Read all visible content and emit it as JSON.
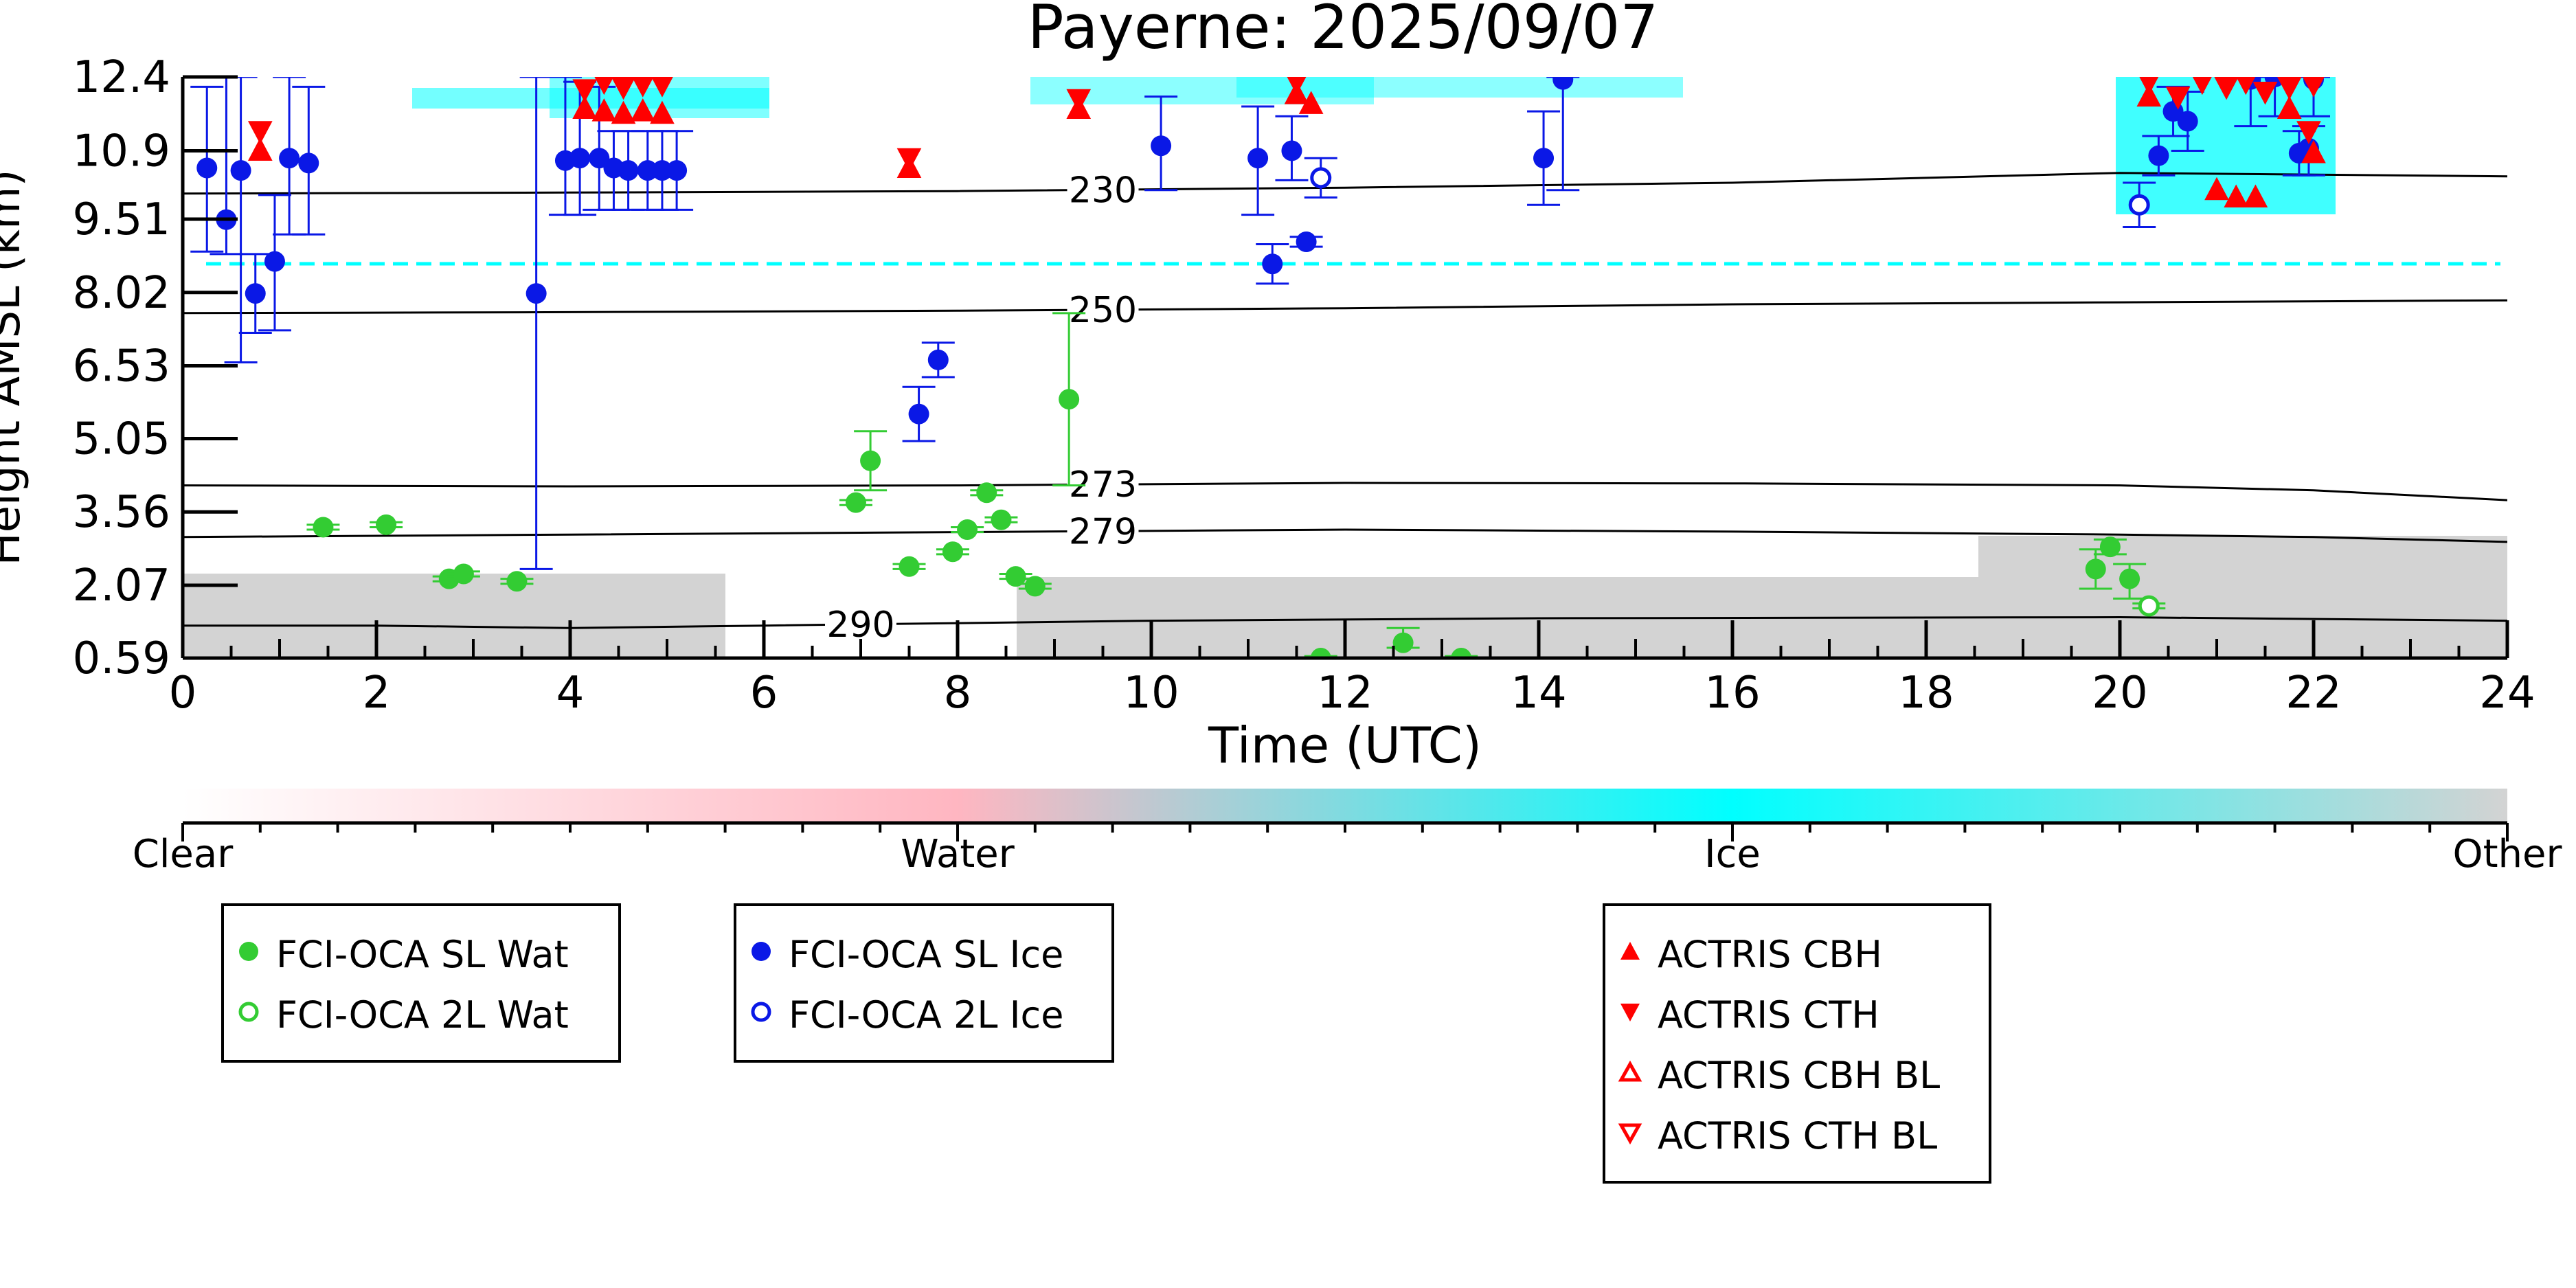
{
  "chart_data": {
    "type": "scatter",
    "title": "Payerne: 2025/09/07",
    "xlabel": "Time (UTC)",
    "ylabel": "Height AMSL (km)",
    "xlim": [
      0,
      24
    ],
    "ylim": [
      0.59,
      12.4
    ],
    "x_ticks": [
      "0",
      "2",
      "4",
      "6",
      "8",
      "10",
      "12",
      "14",
      "16",
      "18",
      "20",
      "22",
      "24"
    ],
    "y_ticks": [
      "12.4",
      "10.9",
      "9.51",
      "8.02",
      "6.53",
      "5.05",
      "3.56",
      "2.07",
      "0.59"
    ],
    "y_tick_values": [
      12.4,
      10.9,
      9.51,
      8.02,
      6.53,
      5.05,
      3.56,
      2.07,
      0.59
    ],
    "colorbar": {
      "labels": [
        "Clear",
        "Water",
        "Ice",
        "Other"
      ],
      "colors": [
        "#ffffff",
        "#ffb6c1",
        "#00ffff",
        "#d3d3d3"
      ]
    },
    "isotherms": [
      {
        "label": "230",
        "label_x": 9.5,
        "points": [
          [
            0,
            10.03
          ],
          [
            4,
            10.05
          ],
          [
            8,
            10.08
          ],
          [
            12,
            10.15
          ],
          [
            16,
            10.25
          ],
          [
            20,
            10.45
          ],
          [
            24,
            10.38
          ]
        ]
      },
      {
        "label": "250",
        "label_x": 9.5,
        "points": [
          [
            0,
            7.6
          ],
          [
            4,
            7.62
          ],
          [
            8,
            7.65
          ],
          [
            12,
            7.7
          ],
          [
            16,
            7.78
          ],
          [
            20,
            7.82
          ],
          [
            24,
            7.86
          ]
        ]
      },
      {
        "label": "273",
        "label_x": 9.5,
        "points": [
          [
            0,
            4.1
          ],
          [
            4,
            4.08
          ],
          [
            8,
            4.1
          ],
          [
            12,
            4.15
          ],
          [
            16,
            4.14
          ],
          [
            20,
            4.1
          ],
          [
            22,
            4.0
          ],
          [
            24,
            3.8
          ]
        ]
      },
      {
        "label": "279",
        "label_x": 9.5,
        "points": [
          [
            0,
            3.05
          ],
          [
            4,
            3.1
          ],
          [
            8,
            3.15
          ],
          [
            12,
            3.2
          ],
          [
            16,
            3.16
          ],
          [
            20,
            3.1
          ],
          [
            22,
            3.05
          ],
          [
            24,
            2.95
          ]
        ]
      },
      {
        "label": "290",
        "label_x": 7.0,
        "points": [
          [
            0,
            1.25
          ],
          [
            2,
            1.25
          ],
          [
            4,
            1.2
          ],
          [
            6,
            1.25
          ],
          [
            8,
            1.3
          ],
          [
            10,
            1.35
          ],
          [
            14,
            1.4
          ],
          [
            20,
            1.42
          ],
          [
            24,
            1.35
          ]
        ]
      }
    ],
    "series": [
      {
        "name": "FCI-OCA SL Wat",
        "color": "#33cc33",
        "marker": "circle",
        "filled": true,
        "points": [
          {
            "x": 1.45,
            "y": 3.25,
            "lo": 3.2,
            "hi": 3.3
          },
          {
            "x": 2.1,
            "y": 3.3,
            "lo": 3.25,
            "hi": 3.35
          },
          {
            "x": 2.75,
            "y": 2.2,
            "lo": 2.15,
            "hi": 2.25
          },
          {
            "x": 2.9,
            "y": 2.3,
            "lo": 2.25,
            "hi": 2.35
          },
          {
            "x": 3.45,
            "y": 2.15,
            "lo": 2.1,
            "hi": 2.2
          },
          {
            "x": 6.95,
            "y": 3.75,
            "lo": 3.7,
            "hi": 3.8
          },
          {
            "x": 7.1,
            "y": 4.6,
            "lo": 4.0,
            "hi": 5.2
          },
          {
            "x": 7.5,
            "y": 2.45,
            "lo": 2.4,
            "hi": 2.5
          },
          {
            "x": 7.95,
            "y": 2.75,
            "lo": 2.7,
            "hi": 2.8
          },
          {
            "x": 8.1,
            "y": 3.2,
            "lo": 3.15,
            "hi": 3.25
          },
          {
            "x": 8.3,
            "y": 3.95,
            "lo": 3.9,
            "hi": 4.0
          },
          {
            "x": 8.45,
            "y": 3.4,
            "lo": 3.35,
            "hi": 3.45
          },
          {
            "x": 8.6,
            "y": 2.25,
            "lo": 2.2,
            "hi": 2.3
          },
          {
            "x": 8.8,
            "y": 2.05,
            "lo": 2.0,
            "hi": 2.1
          },
          {
            "x": 9.15,
            "y": 5.85,
            "lo": 4.1,
            "hi": 7.6
          },
          {
            "x": 11.75,
            "y": 0.59,
            "lo": 0.55,
            "hi": 0.63
          },
          {
            "x": 12.6,
            "y": 0.9,
            "lo": 0.8,
            "hi": 1.2
          },
          {
            "x": 13.2,
            "y": 0.59,
            "lo": 0.55,
            "hi": 0.63
          },
          {
            "x": 19.75,
            "y": 2.4,
            "lo": 2.0,
            "hi": 2.8
          },
          {
            "x": 19.9,
            "y": 2.85,
            "lo": 2.7,
            "hi": 3.0
          },
          {
            "x": 20.1,
            "y": 2.2,
            "lo": 1.8,
            "hi": 2.5
          }
        ]
      },
      {
        "name": "FCI-OCA 2L Wat",
        "color": "#33cc33",
        "marker": "circle",
        "filled": false,
        "points": [
          {
            "x": 20.3,
            "y": 1.65,
            "lo": 1.6,
            "hi": 1.7
          }
        ]
      },
      {
        "name": "FCI-OCA SL Ice",
        "color": "#0a18e6",
        "marker": "circle",
        "filled": true,
        "points": [
          {
            "x": 0.25,
            "y": 10.55,
            "lo": 8.85,
            "hi": 12.2
          },
          {
            "x": 0.45,
            "y": 9.5,
            "lo": 8.8,
            "hi": 12.4
          },
          {
            "x": 0.6,
            "y": 10.5,
            "lo": 6.6,
            "hi": 12.4
          },
          {
            "x": 0.75,
            "y": 8.0,
            "lo": 7.2,
            "hi": 8.8
          },
          {
            "x": 0.95,
            "y": 8.65,
            "lo": 7.25,
            "hi": 10.0
          },
          {
            "x": 1.1,
            "y": 10.75,
            "lo": 9.2,
            "hi": 12.4
          },
          {
            "x": 1.3,
            "y": 10.65,
            "lo": 9.2,
            "hi": 12.2
          },
          {
            "x": 3.65,
            "y": 8.0,
            "lo": 2.4,
            "hi": 12.4
          },
          {
            "x": 3.95,
            "y": 10.7,
            "lo": 9.6,
            "hi": 12.4
          },
          {
            "x": 4.1,
            "y": 10.75,
            "lo": 9.6,
            "hi": 12.3
          },
          {
            "x": 4.3,
            "y": 10.75,
            "lo": 9.7,
            "hi": 12.2
          },
          {
            "x": 4.45,
            "y": 10.55,
            "lo": 9.7,
            "hi": 11.3
          },
          {
            "x": 4.6,
            "y": 10.5,
            "lo": 9.7,
            "hi": 11.3
          },
          {
            "x": 4.8,
            "y": 10.5,
            "lo": 9.7,
            "hi": 11.3
          },
          {
            "x": 4.95,
            "y": 10.5,
            "lo": 9.7,
            "hi": 11.3
          },
          {
            "x": 5.1,
            "y": 10.5,
            "lo": 9.7,
            "hi": 11.3
          },
          {
            "x": 7.6,
            "y": 5.55,
            "lo": 5.0,
            "hi": 6.1
          },
          {
            "x": 7.8,
            "y": 6.65,
            "lo": 6.3,
            "hi": 7.0
          },
          {
            "x": 10.1,
            "y": 11.0,
            "lo": 10.1,
            "hi": 12.0
          },
          {
            "x": 11.1,
            "y": 10.75,
            "lo": 9.6,
            "hi": 11.8
          },
          {
            "x": 11.25,
            "y": 8.6,
            "lo": 8.2,
            "hi": 9.0
          },
          {
            "x": 11.45,
            "y": 10.9,
            "lo": 10.3,
            "hi": 11.6
          },
          {
            "x": 11.6,
            "y": 9.05,
            "lo": 8.95,
            "hi": 9.15
          },
          {
            "x": 14.05,
            "y": 10.75,
            "lo": 9.8,
            "hi": 11.7
          },
          {
            "x": 14.25,
            "y": 12.35,
            "lo": 10.1,
            "hi": 12.4
          },
          {
            "x": 20.55,
            "y": 11.7,
            "lo": 11.2,
            "hi": 12.2
          },
          {
            "x": 20.7,
            "y": 11.5,
            "lo": 10.9,
            "hi": 12.1
          },
          {
            "x": 21.35,
            "y": 12.35,
            "lo": 11.4,
            "hi": 12.4
          },
          {
            "x": 21.6,
            "y": 12.4,
            "lo": 11.6,
            "hi": 12.4
          },
          {
            "x": 21.85,
            "y": 10.85,
            "lo": 10.4,
            "hi": 11.3
          },
          {
            "x": 21.95,
            "y": 10.95,
            "lo": 10.4,
            "hi": 11.4
          },
          {
            "x": 22.0,
            "y": 12.35,
            "lo": 11.6,
            "hi": 12.4
          },
          {
            "x": 20.4,
            "y": 10.8,
            "lo": 10.4,
            "hi": 11.2
          }
        ]
      },
      {
        "name": "FCI-OCA 2L Ice",
        "color": "#0a18e6",
        "marker": "circle",
        "filled": false,
        "points": [
          {
            "x": 11.75,
            "y": 10.35,
            "lo": 9.95,
            "hi": 10.75
          },
          {
            "x": 20.2,
            "y": 9.8,
            "lo": 9.35,
            "hi": 10.25
          }
        ]
      },
      {
        "name": "ACTRIS CBH",
        "color": "#ff0000",
        "marker": "triangle-up",
        "filled": true,
        "points": [
          {
            "x": 0.8,
            "y": 10.9
          },
          {
            "x": 4.15,
            "y": 11.75
          },
          {
            "x": 4.35,
            "y": 11.7
          },
          {
            "x": 4.55,
            "y": 11.65
          },
          {
            "x": 4.75,
            "y": 11.7
          },
          {
            "x": 4.95,
            "y": 11.65
          },
          {
            "x": 7.5,
            "y": 10.55
          },
          {
            "x": 9.25,
            "y": 11.75
          },
          {
            "x": 11.5,
            "y": 12.05
          },
          {
            "x": 11.65,
            "y": 11.85
          },
          {
            "x": 20.3,
            "y": 12.0
          },
          {
            "x": 21.0,
            "y": 10.1
          },
          {
            "x": 21.2,
            "y": 9.95
          },
          {
            "x": 21.4,
            "y": 9.95
          },
          {
            "x": 21.75,
            "y": 11.75
          },
          {
            "x": 22.0,
            "y": 10.85
          }
        ]
      },
      {
        "name": "ACTRIS CTH",
        "color": "#ff0000",
        "marker": "triangle-down",
        "filled": true,
        "points": [
          {
            "x": 0.8,
            "y": 11.3
          },
          {
            "x": 4.15,
            "y": 12.15
          },
          {
            "x": 4.35,
            "y": 12.3
          },
          {
            "x": 4.55,
            "y": 12.2
          },
          {
            "x": 4.75,
            "y": 12.25
          },
          {
            "x": 4.95,
            "y": 12.25
          },
          {
            "x": 7.5,
            "y": 10.75
          },
          {
            "x": 9.25,
            "y": 11.95
          },
          {
            "x": 11.5,
            "y": 12.3
          },
          {
            "x": 20.3,
            "y": 12.3
          },
          {
            "x": 20.6,
            "y": 12.0
          },
          {
            "x": 20.85,
            "y": 12.3
          },
          {
            "x": 21.1,
            "y": 12.2
          },
          {
            "x": 21.3,
            "y": 12.3
          },
          {
            "x": 21.5,
            "y": 12.1
          },
          {
            "x": 21.75,
            "y": 12.2
          },
          {
            "x": 22.0,
            "y": 12.25
          },
          {
            "x": 21.95,
            "y": 11.3
          }
        ]
      },
      {
        "name": "ACTRIS CBH BL",
        "color": "#ff0000",
        "marker": "triangle-up",
        "filled": false,
        "points": []
      },
      {
        "name": "ACTRIS CTH BL",
        "color": "#ff0000",
        "marker": "triangle-down",
        "filled": false,
        "points": []
      }
    ],
    "grid": false,
    "legend_position": "bottom"
  }
}
